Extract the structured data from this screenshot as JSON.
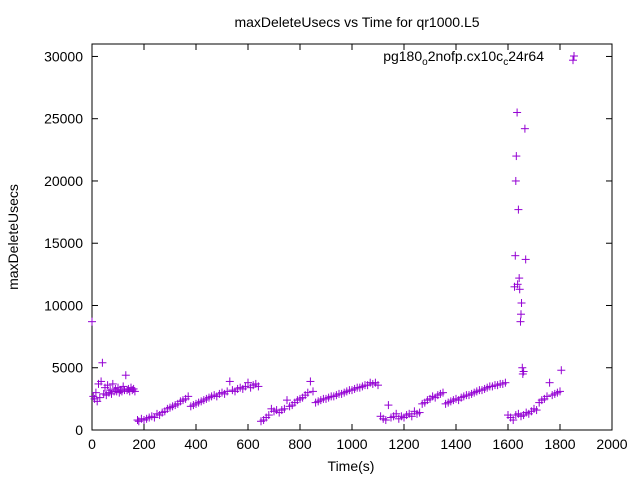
{
  "chart_data": {
    "type": "scatter",
    "title": "maxDeleteUsecs vs Time for qr1000.L5",
    "xlabel": "Time(s)",
    "ylabel": "maxDeleteUsecs",
    "xlim": [
      0,
      2000
    ],
    "ylim": [
      0,
      31000
    ],
    "xticks": [
      0,
      200,
      400,
      600,
      800,
      1000,
      1200,
      1400,
      1600,
      1800,
      2000
    ],
    "yticks": [
      0,
      5000,
      10000,
      15000,
      20000,
      25000,
      30000
    ],
    "grid": false,
    "legend_position": "top-right",
    "marker": "plus",
    "color": "#9400d3",
    "legend": {
      "part1": "pg180",
      "sub1": "o",
      "part2": "2nofp.cx10c",
      "sub2": "c",
      "part3": "24r64"
    },
    "series": [
      {
        "points": [
          [
            0,
            8700
          ],
          [
            5,
            2700
          ],
          [
            10,
            2500
          ],
          [
            15,
            3000
          ],
          [
            20,
            2300
          ],
          [
            25,
            3700
          ],
          [
            30,
            2600
          ],
          [
            35,
            3900
          ],
          [
            40,
            5400
          ],
          [
            45,
            2900
          ],
          [
            50,
            3400
          ],
          [
            55,
            2800
          ],
          [
            60,
            3600
          ],
          [
            65,
            3000
          ],
          [
            70,
            3200
          ],
          [
            75,
            2900
          ],
          [
            80,
            3700
          ],
          [
            85,
            3100
          ],
          [
            90,
            3300
          ],
          [
            95,
            3100
          ],
          [
            100,
            3400
          ],
          [
            105,
            3000
          ],
          [
            110,
            3200
          ],
          [
            115,
            3100
          ],
          [
            120,
            3500
          ],
          [
            125,
            3200
          ],
          [
            130,
            4400
          ],
          [
            135,
            3200
          ],
          [
            140,
            3300
          ],
          [
            145,
            3100
          ],
          [
            150,
            3400
          ],
          [
            155,
            3200
          ],
          [
            160,
            3300
          ],
          [
            165,
            3100
          ],
          [
            175,
            800
          ],
          [
            180,
            700
          ],
          [
            190,
            900
          ],
          [
            200,
            800
          ],
          [
            210,
            900
          ],
          [
            220,
            1000
          ],
          [
            230,
            1100
          ],
          [
            240,
            1000
          ],
          [
            250,
            1300
          ],
          [
            260,
            1200
          ],
          [
            270,
            1400
          ],
          [
            280,
            1500
          ],
          [
            290,
            1700
          ],
          [
            300,
            1800
          ],
          [
            310,
            1900
          ],
          [
            320,
            2000
          ],
          [
            330,
            2100
          ],
          [
            340,
            2300
          ],
          [
            350,
            2400
          ],
          [
            360,
            2500
          ],
          [
            370,
            2700
          ],
          [
            380,
            1900
          ],
          [
            390,
            2000
          ],
          [
            400,
            2100
          ],
          [
            410,
            2200
          ],
          [
            420,
            2300
          ],
          [
            430,
            2400
          ],
          [
            440,
            2500
          ],
          [
            450,
            2600
          ],
          [
            460,
            2700
          ],
          [
            470,
            2800
          ],
          [
            480,
            2700
          ],
          [
            490,
            2900
          ],
          [
            500,
            3000
          ],
          [
            510,
            2900
          ],
          [
            520,
            3100
          ],
          [
            530,
            3900
          ],
          [
            540,
            3200
          ],
          [
            550,
            3100
          ],
          [
            560,
            3300
          ],
          [
            570,
            3400
          ],
          [
            580,
            3300
          ],
          [
            590,
            3500
          ],
          [
            600,
            3800
          ],
          [
            610,
            3400
          ],
          [
            620,
            3600
          ],
          [
            630,
            3700
          ],
          [
            640,
            3500
          ],
          [
            650,
            700
          ],
          [
            660,
            800
          ],
          [
            670,
            1000
          ],
          [
            680,
            1200
          ],
          [
            690,
            1700
          ],
          [
            700,
            1500
          ],
          [
            710,
            1600
          ],
          [
            720,
            1400
          ],
          [
            730,
            1600
          ],
          [
            740,
            1700
          ],
          [
            750,
            2400
          ],
          [
            760,
            1900
          ],
          [
            770,
            2000
          ],
          [
            780,
            2200
          ],
          [
            790,
            2400
          ],
          [
            800,
            2500
          ],
          [
            810,
            2600
          ],
          [
            820,
            2800
          ],
          [
            830,
            3000
          ],
          [
            840,
            3900
          ],
          [
            850,
            3100
          ],
          [
            860,
            2200
          ],
          [
            870,
            2300
          ],
          [
            880,
            2400
          ],
          [
            890,
            2500
          ],
          [
            900,
            2500
          ],
          [
            910,
            2600
          ],
          [
            920,
            2700
          ],
          [
            930,
            2700
          ],
          [
            940,
            2800
          ],
          [
            950,
            2900
          ],
          [
            960,
            2900
          ],
          [
            970,
            3000
          ],
          [
            980,
            3100
          ],
          [
            990,
            3200
          ],
          [
            1000,
            3200
          ],
          [
            1010,
            3300
          ],
          [
            1020,
            3400
          ],
          [
            1030,
            3400
          ],
          [
            1040,
            3500
          ],
          [
            1050,
            3600
          ],
          [
            1060,
            3600
          ],
          [
            1070,
            3800
          ],
          [
            1080,
            3700
          ],
          [
            1090,
            3800
          ],
          [
            1100,
            3600
          ],
          [
            1110,
            1100
          ],
          [
            1120,
            900
          ],
          [
            1130,
            800
          ],
          [
            1140,
            2000
          ],
          [
            1150,
            1000
          ],
          [
            1160,
            1100
          ],
          [
            1170,
            1300
          ],
          [
            1180,
            900
          ],
          [
            1190,
            1100
          ],
          [
            1200,
            1000
          ],
          [
            1210,
            1200
          ],
          [
            1220,
            1300
          ],
          [
            1230,
            1100
          ],
          [
            1240,
            1500
          ],
          [
            1250,
            1300
          ],
          [
            1260,
            1400
          ],
          [
            1270,
            2100
          ],
          [
            1280,
            2200
          ],
          [
            1290,
            2400
          ],
          [
            1300,
            2500
          ],
          [
            1310,
            2700
          ],
          [
            1320,
            2600
          ],
          [
            1330,
            2800
          ],
          [
            1340,
            2900
          ],
          [
            1350,
            3000
          ],
          [
            1360,
            2100
          ],
          [
            1370,
            2200
          ],
          [
            1380,
            2300
          ],
          [
            1390,
            2400
          ],
          [
            1400,
            2500
          ],
          [
            1410,
            2400
          ],
          [
            1420,
            2600
          ],
          [
            1430,
            2700
          ],
          [
            1440,
            2800
          ],
          [
            1450,
            2800
          ],
          [
            1460,
            2900
          ],
          [
            1470,
            3000
          ],
          [
            1480,
            3100
          ],
          [
            1490,
            3200
          ],
          [
            1500,
            3200
          ],
          [
            1510,
            3300
          ],
          [
            1520,
            3400
          ],
          [
            1530,
            3500
          ],
          [
            1540,
            3500
          ],
          [
            1550,
            3600
          ],
          [
            1560,
            3600
          ],
          [
            1570,
            3700
          ],
          [
            1580,
            3700
          ],
          [
            1590,
            3800
          ],
          [
            1600,
            1200
          ],
          [
            1610,
            1000
          ],
          [
            1620,
            800
          ],
          [
            1625,
            11500
          ],
          [
            1628,
            14000
          ],
          [
            1630,
            20000
          ],
          [
            1632,
            22000
          ],
          [
            1635,
            25500
          ],
          [
            1637,
            11700
          ],
          [
            1640,
            17700
          ],
          [
            1643,
            12200
          ],
          [
            1645,
            11300
          ],
          [
            1648,
            8700
          ],
          [
            1650,
            9300
          ],
          [
            1652,
            10200
          ],
          [
            1655,
            5000
          ],
          [
            1657,
            4500
          ],
          [
            1660,
            4700
          ],
          [
            1665,
            24200
          ],
          [
            1668,
            13700
          ],
          [
            1630,
            1200
          ],
          [
            1640,
            1300
          ],
          [
            1650,
            1100
          ],
          [
            1660,
            1200
          ],
          [
            1670,
            1400
          ],
          [
            1680,
            1300
          ],
          [
            1690,
            1500
          ],
          [
            1700,
            1700
          ],
          [
            1710,
            1600
          ],
          [
            1720,
            2200
          ],
          [
            1730,
            2400
          ],
          [
            1740,
            2500
          ],
          [
            1750,
            2700
          ],
          [
            1760,
            3800
          ],
          [
            1770,
            2800
          ],
          [
            1780,
            2900
          ],
          [
            1790,
            3000
          ],
          [
            1800,
            3100
          ],
          [
            1805,
            4800
          ],
          [
            1850,
            29700
          ]
        ]
      }
    ]
  }
}
